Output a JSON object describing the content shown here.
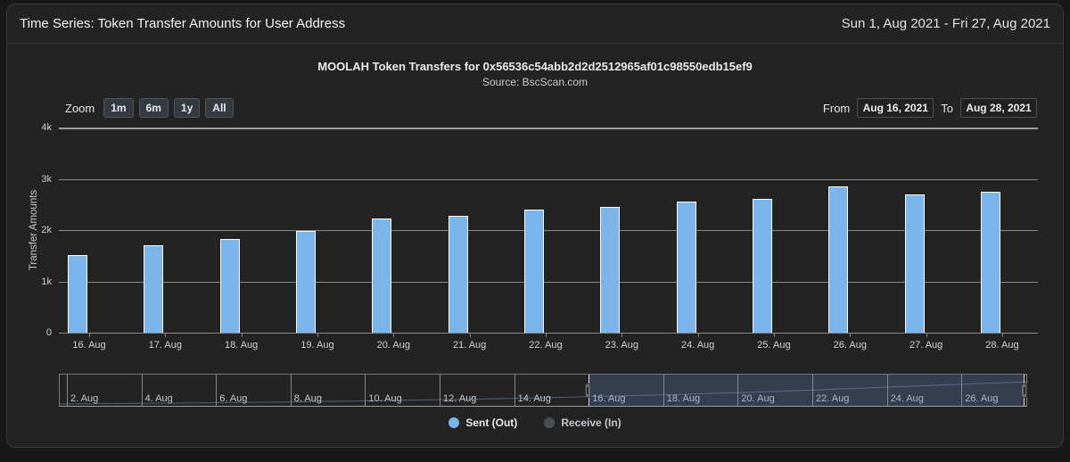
{
  "header": {
    "title": "Time Series: Token Transfer Amounts for User Address",
    "date_range": "Sun 1, Aug 2021 - Fri 27, Aug 2021"
  },
  "chart": {
    "title": "MOOLAH Token Transfers for 0x56536c54abb2d2d2512965af01c98550edb15ef9",
    "subtitle": "Source: BscScan.com",
    "range_selector": {
      "zoom_label": "Zoom",
      "buttons": [
        "1m",
        "6m",
        "1y",
        "All"
      ],
      "from_label": "From",
      "from_value": "Aug 16, 2021",
      "to_label": "To",
      "to_value": "Aug 28, 2021"
    },
    "y_axis": {
      "title": "Transfer Amounts",
      "ticks": [
        "4k",
        "3k",
        "2k",
        "1k",
        "0"
      ],
      "max": 4000
    }
  },
  "chart_data": {
    "type": "bar",
    "title": "MOOLAH Token Transfers for 0x56536c54abb2d2d2512965af01c98550edb15ef9",
    "subtitle": "Source: BscScan.com",
    "xlabel": "",
    "ylabel": "Transfer Amounts",
    "ylim": [
      0,
      4000
    ],
    "grid": true,
    "legend_position": "bottom",
    "categories": [
      "16. Aug",
      "17. Aug",
      "18. Aug",
      "19. Aug",
      "20. Aug",
      "21. Aug",
      "22. Aug",
      "23. Aug",
      "24. Aug",
      "25. Aug",
      "26. Aug",
      "27. Aug",
      "28. Aug"
    ],
    "series": [
      {
        "name": "Sent (Out)",
        "color": "#7cb5ec",
        "visible": true,
        "values": [
          1510,
          1700,
          1820,
          1990,
          2230,
          2270,
          2400,
          2450,
          2550,
          2610,
          2850,
          2690,
          2750
        ]
      },
      {
        "name": "Receive (In)",
        "color": "#4a4d52",
        "visible": false,
        "values": []
      }
    ]
  },
  "navigator": {
    "labels": [
      "2. Aug",
      "4. Aug",
      "6. Aug",
      "8. Aug",
      "10. Aug",
      "12. Aug",
      "14. Aug",
      "16. Aug",
      "18. Aug",
      "20. Aug",
      "22. Aug",
      "24. Aug",
      "26. Aug"
    ],
    "selected_from": "Aug 16, 2021",
    "selected_to": "Aug 28, 2021"
  },
  "legend": [
    {
      "label": "Sent (Out)",
      "color": "#7cb5ec"
    },
    {
      "label": "Receive (In)",
      "color": "#4a4d52"
    }
  ],
  "colors": {
    "bar_fill": "#7cb5ec",
    "bar_border": "#ffffff",
    "panel_bg": "#232323",
    "page_bg": "#181818",
    "gridline": "#85878a",
    "navigator_mask": "rgba(102,133,194,0.28)"
  }
}
